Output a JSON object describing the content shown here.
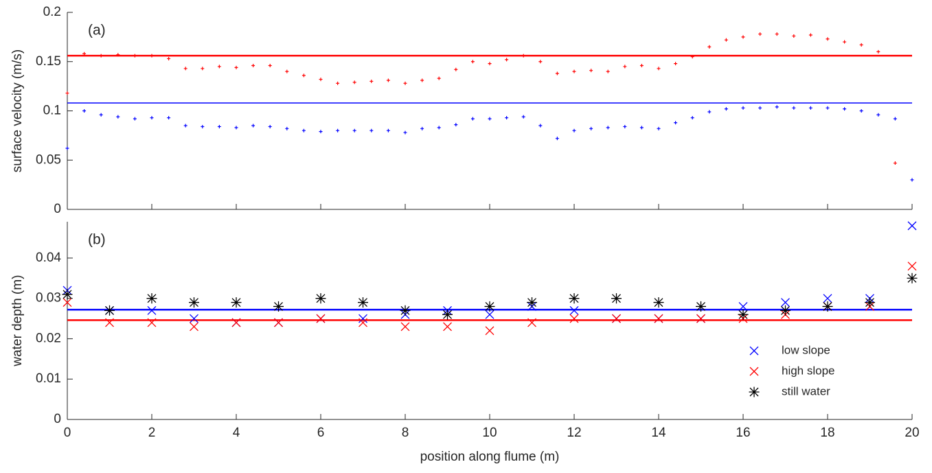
{
  "chart_data": [
    {
      "type": "scatter",
      "annotation": "(a)",
      "ylabel": "surface velocity (m/s)",
      "xlim": [
        0,
        20
      ],
      "xticks": [
        0,
        2,
        4,
        6,
        8,
        10,
        12,
        14,
        16,
        18,
        20
      ],
      "show_xticklabels": false,
      "ylim": [
        0,
        0.2
      ],
      "yticks": [
        0,
        0.05,
        0.1,
        0.15,
        0.2
      ],
      "x": [
        0,
        0.4,
        0.8,
        1.2,
        1.6,
        2.0,
        2.4,
        2.8,
        3.2,
        3.6,
        4.0,
        4.4,
        4.8,
        5.2,
        5.6,
        6.0,
        6.4,
        6.8,
        7.2,
        7.6,
        8.0,
        8.4,
        8.8,
        9.2,
        9.6,
        10.0,
        10.4,
        10.8,
        11.2,
        11.6,
        12.0,
        12.4,
        12.8,
        13.2,
        13.6,
        14.0,
        14.4,
        14.8,
        15.2,
        15.6,
        16.0,
        16.4,
        16.8,
        17.2,
        17.6,
        18.0,
        18.4,
        18.8,
        19.2,
        19.6,
        20.0
      ],
      "series": [
        {
          "color": "#ff0000",
          "marker": "plus",
          "values": [
            0.118,
            0.158,
            0.156,
            0.157,
            0.156,
            0.156,
            0.153,
            0.143,
            0.143,
            0.145,
            0.144,
            0.146,
            0.146,
            0.14,
            0.136,
            0.132,
            0.128,
            0.129,
            0.13,
            0.131,
            0.128,
            0.131,
            0.133,
            0.142,
            0.15,
            0.148,
            0.152,
            0.156,
            0.15,
            0.138,
            0.14,
            0.141,
            0.14,
            0.145,
            0.146,
            0.143,
            0.148,
            0.155,
            0.165,
            0.172,
            0.175,
            0.178,
            0.178,
            0.176,
            0.177,
            0.173,
            0.17,
            0.167,
            0.16,
            0.047,
            null
          ]
        },
        {
          "color": "#0000ff",
          "marker": "plus",
          "values": [
            0.062,
            0.1,
            0.096,
            0.094,
            0.092,
            0.093,
            0.093,
            0.085,
            0.084,
            0.084,
            0.083,
            0.085,
            0.084,
            0.082,
            0.08,
            0.079,
            0.08,
            0.08,
            0.08,
            0.08,
            0.078,
            0.082,
            0.083,
            0.086,
            0.092,
            0.092,
            0.093,
            0.094,
            0.085,
            0.072,
            0.08,
            0.082,
            0.083,
            0.084,
            0.083,
            0.082,
            0.088,
            0.093,
            0.099,
            0.102,
            0.103,
            0.103,
            0.104,
            0.103,
            0.103,
            0.103,
            0.102,
            0.1,
            0.096,
            0.092,
            0.03
          ]
        }
      ],
      "hlines": [
        {
          "value": 0.156,
          "color": "#ff0000"
        },
        {
          "value": 0.108,
          "color": "#0000ff"
        }
      ]
    },
    {
      "type": "scatter",
      "annotation": "(b)",
      "ylabel": "water depth (m)",
      "xlabel": "position along flume (m)",
      "xlim": [
        0,
        20
      ],
      "xticks": [
        0,
        2,
        4,
        6,
        8,
        10,
        12,
        14,
        16,
        18,
        20
      ],
      "show_xticklabels": true,
      "ylim": [
        0,
        0.049
      ],
      "yticks": [
        0,
        0.01,
        0.02,
        0.03,
        0.04
      ],
      "x": [
        0,
        1,
        2,
        3,
        4,
        5,
        6,
        7,
        8,
        9,
        10,
        11,
        12,
        13,
        14,
        15,
        16,
        17,
        18,
        19,
        20
      ],
      "legend": "lower right",
      "series": [
        {
          "name": "low slope",
          "color": "#0000ff",
          "marker": "x",
          "values": [
            0.032,
            0.027,
            0.027,
            0.025,
            0.024,
            0.024,
            0.025,
            0.025,
            0.026,
            0.027,
            0.026,
            0.028,
            0.027,
            0.025,
            0.025,
            0.025,
            0.028,
            0.029,
            0.03,
            0.03,
            0.048
          ]
        },
        {
          "name": "high slope",
          "color": "#ff0000",
          "marker": "x",
          "values": [
            0.029,
            0.024,
            0.024,
            0.023,
            0.024,
            0.024,
            0.025,
            0.024,
            0.023,
            0.023,
            0.022,
            0.024,
            0.025,
            0.025,
            0.025,
            0.025,
            0.025,
            0.026,
            0.028,
            0.028,
            0.038
          ]
        },
        {
          "name": "still water",
          "color": "#000000",
          "marker": "star",
          "values": [
            0.031,
            0.027,
            0.03,
            0.029,
            0.029,
            0.028,
            0.03,
            0.029,
            0.027,
            0.026,
            0.028,
            0.029,
            0.03,
            0.03,
            0.029,
            0.028,
            0.026,
            0.027,
            0.028,
            0.029,
            0.035
          ]
        }
      ],
      "hlines": [
        {
          "value": 0.0272,
          "color": "#0000ff"
        },
        {
          "value": 0.0246,
          "color": "#ff0000"
        }
      ]
    }
  ]
}
